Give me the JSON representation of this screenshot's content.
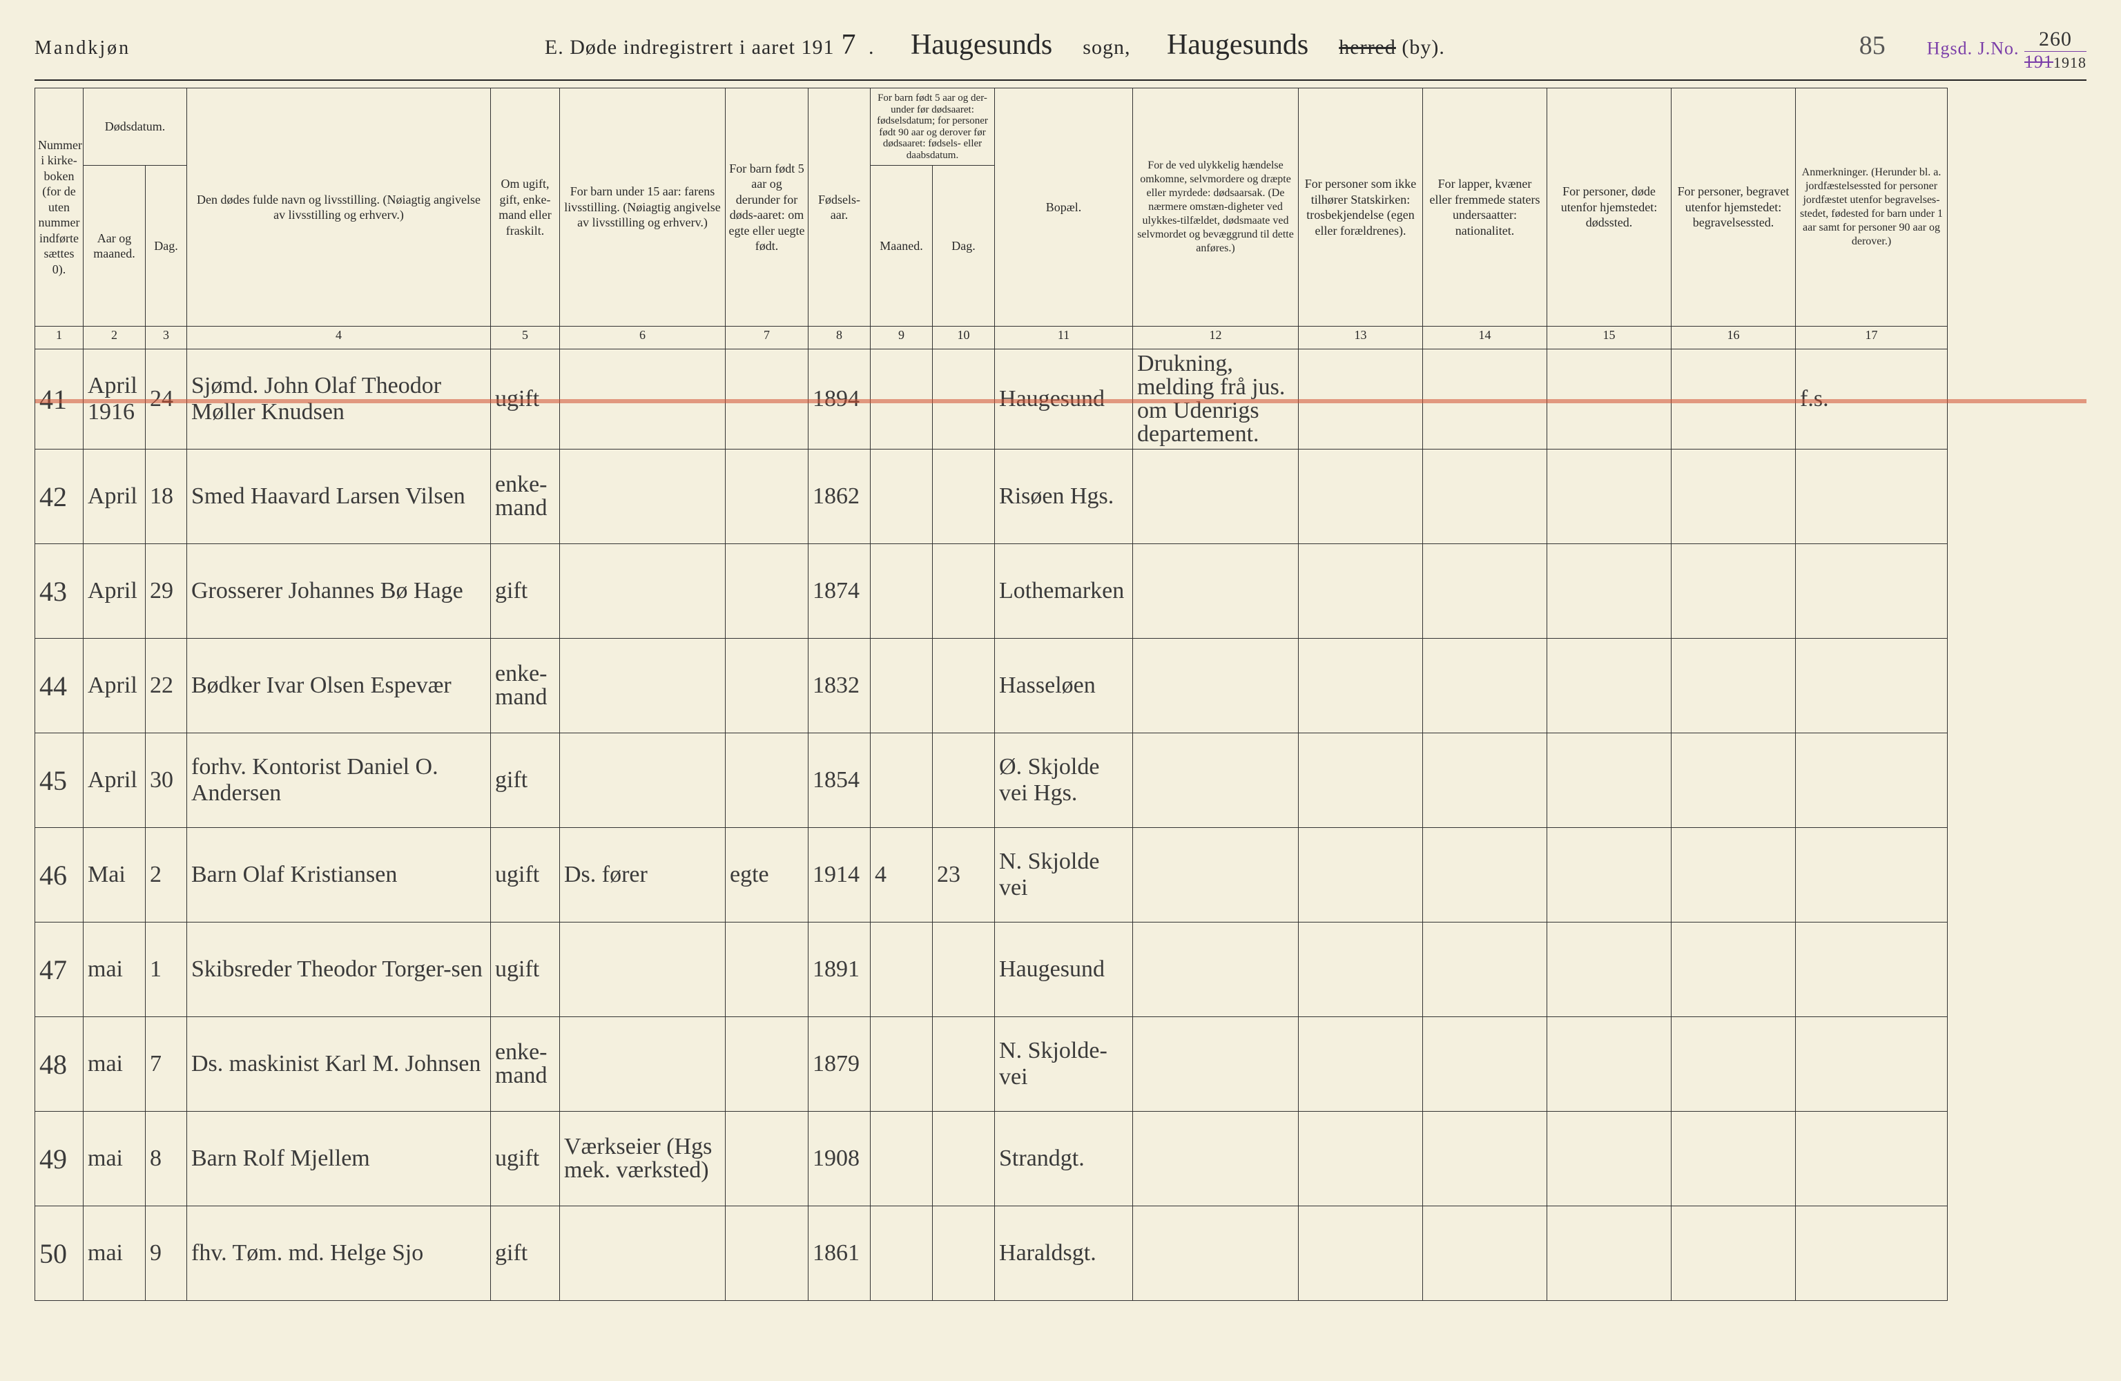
{
  "header": {
    "gender": "Mandkjøn",
    "title_prefix": "E.   Døde indregistrert i aaret 191",
    "year_digit": "7",
    "parish_cursive": "Haugesunds",
    "label_sogn": "sogn,",
    "district_cursive": "Haugesunds",
    "label_herred": "herred",
    "label_by": "(by).",
    "page_num": "85",
    "stamp_label": "Hgsd.   J.No.",
    "stamp_num_top": "260",
    "stamp_num_bottom": "1918",
    "stamp_strike": "191"
  },
  "columns": {
    "h1": "Nummer i kirke-boken (for de uten nummer indførte sættes 0).",
    "h2_top": "Dødsdatum.",
    "h2a": "Aar og maaned.",
    "h2b": "Dag.",
    "h4": "Den dødes fulde navn og livsstilling.\n(Nøiagtig angivelse av livsstilling og erhverv.)",
    "h5": "Om ugift, gift, enke-mand eller fraskilt.",
    "h6": "For barn under 15 aar: farens livsstilling.\n(Nøiagtig angivelse av livsstilling og erhverv.)",
    "h7": "For barn født 5 aar og derunder for døds-aaret: om egte eller uegte født.",
    "h8": "Fødsels-aar.",
    "h9_top": "For barn født 5 aar og der-under før dødsaaret: fødselsdatum; for personer født 90 aar og derover før dødsaaret: fødsels- eller daabsdatum.",
    "h9a": "Maaned.",
    "h9b": "Dag.",
    "h11": "Bopæl.",
    "h12": "For de ved ulykkelig hændelse omkomne, selvmordere og dræpte eller myrdede: dødsaarsak.\n(De nærmere omstæn-digheter ved ulykkes-tilfældet, dødsmaate ved selvmordet og bevæggrund til dette anføres.)",
    "h13": "For personer som ikke tilhører Statskirken: trosbekjendelse\n(egen eller forældrenes).",
    "h14": "For lapper, kvæner eller fremmede staters undersaatter: nationalitet.",
    "h15": "For personer, døde utenfor hjemstedet: dødssted.",
    "h16": "For personer, begravet utenfor hjemstedet: begravelsessted.",
    "h17": "Anmerkninger.\n(Herunder bl. a. jordfæstelsessted for personer jordfæstet utenfor begravelses-stedet, fødested for barn under 1 aar samt for personer 90 aar og derover.)"
  },
  "colnums": [
    "1",
    "2",
    "3",
    "4",
    "5",
    "6",
    "7",
    "8",
    "9",
    "10",
    "11",
    "12",
    "13",
    "14",
    "15",
    "16",
    "17"
  ],
  "rows": [
    {
      "num": "41",
      "mon": "April 1916",
      "day": "24",
      "name": "Sjømd. John Olaf Theodor Møller Knudsen",
      "status": "ugift",
      "father": "",
      "legit": "",
      "birth": "1894",
      "bm": "",
      "bd": "",
      "residence": "Haugesund",
      "cause": "Drukning, melding frå jus. om Udenrigs departement.",
      "c13": "",
      "c14": "",
      "c15": "",
      "c16": "",
      "c17": "f.s.",
      "strike": true
    },
    {
      "num": "42",
      "mon": "April",
      "day": "18",
      "name": "Smed Haavard Larsen Vilsen",
      "status": "enke-mand",
      "father": "",
      "legit": "",
      "birth": "1862",
      "bm": "",
      "bd": "",
      "residence": "Risøen Hgs.",
      "cause": "",
      "c13": "",
      "c14": "",
      "c15": "",
      "c16": "",
      "c17": ""
    },
    {
      "num": "43",
      "mon": "April",
      "day": "29",
      "name": "Grosserer Johannes Bø Hage",
      "status": "gift",
      "father": "",
      "legit": "",
      "birth": "1874",
      "bm": "",
      "bd": "",
      "residence": "Lothemarken",
      "cause": "",
      "c13": "",
      "c14": "",
      "c15": "",
      "c16": "",
      "c17": ""
    },
    {
      "num": "44",
      "mon": "April",
      "day": "22",
      "name": "Bødker Ivar Olsen Espevær",
      "status": "enke-mand",
      "father": "",
      "legit": "",
      "birth": "1832",
      "bm": "",
      "bd": "",
      "residence": "Hasseløen",
      "cause": "",
      "c13": "",
      "c14": "",
      "c15": "",
      "c16": "",
      "c17": ""
    },
    {
      "num": "45",
      "mon": "April",
      "day": "30",
      "name": "forhv. Kontorist Daniel O. Andersen",
      "status": "gift",
      "father": "",
      "legit": "",
      "birth": "1854",
      "bm": "",
      "bd": "",
      "residence": "Ø. Skjolde vei Hgs.",
      "cause": "",
      "c13": "",
      "c14": "",
      "c15": "",
      "c16": "",
      "c17": ""
    },
    {
      "num": "46",
      "mon": "Mai",
      "day": "2",
      "name": "Barn Olaf Kristiansen",
      "status": "ugift",
      "father": "Ds. fører",
      "legit": "egte",
      "birth": "1914",
      "bm": "4",
      "bd": "23",
      "residence": "N. Skjolde vei",
      "cause": "",
      "c13": "",
      "c14": "",
      "c15": "",
      "c16": "",
      "c17": ""
    },
    {
      "num": "47",
      "mon": "mai",
      "day": "1",
      "name": "Skibsreder Theodor Torger-sen",
      "status": "ugift",
      "father": "",
      "legit": "",
      "birth": "1891",
      "bm": "",
      "bd": "",
      "residence": "Haugesund",
      "cause": "",
      "c13": "",
      "c14": "",
      "c15": "",
      "c16": "",
      "c17": ""
    },
    {
      "num": "48",
      "mon": "mai",
      "day": "7",
      "name": "Ds. maskinist Karl M. Johnsen",
      "status": "enke-mand",
      "father": "",
      "legit": "",
      "birth": "1879",
      "bm": "",
      "bd": "",
      "residence": "N. Skjolde-vei",
      "cause": "",
      "c13": "",
      "c14": "",
      "c15": "",
      "c16": "",
      "c17": ""
    },
    {
      "num": "49",
      "mon": "mai",
      "day": "8",
      "name": "Barn Rolf Mjellem",
      "status": "ugift",
      "father": "Værkseier (Hgs mek. værksted)",
      "legit": "",
      "birth": "1908",
      "bm": "",
      "bd": "",
      "residence": "Strandgt.",
      "cause": "",
      "c13": "",
      "c14": "",
      "c15": "",
      "c16": "",
      "c17": ""
    },
    {
      "num": "50",
      "mon": "mai",
      "day": "9",
      "name": "fhv. Tøm. md. Helge Sjo",
      "status": "gift",
      "father": "",
      "legit": "",
      "birth": "1861",
      "bm": "",
      "bd": "",
      "residence": "Haraldsgt.",
      "cause": "",
      "c13": "",
      "c14": "",
      "c15": "",
      "c16": "",
      "c17": ""
    }
  ],
  "style": {
    "background_color": "#f4f0de",
    "text_color": "#2a2a2a",
    "cursive_color": "#3a3a3a",
    "stamp_color": "#7a3da8",
    "rule_color": "#222222",
    "red_strike_color": "rgba(210,80,50,0.55)",
    "header_fontsize": 28,
    "colhead_fontsize": 18,
    "cell_fontsize": 34
  }
}
